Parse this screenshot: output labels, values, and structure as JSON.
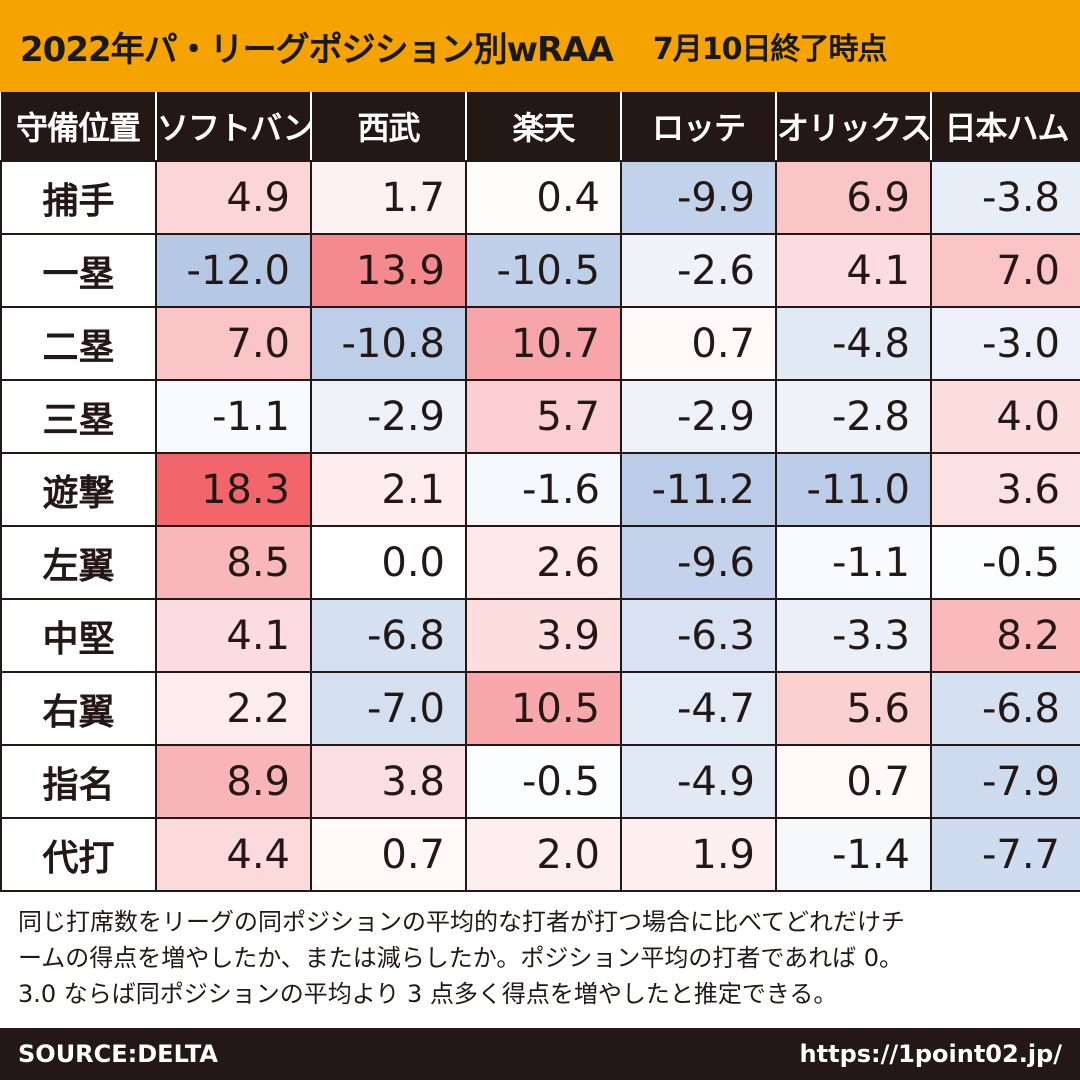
{
  "title": "2022年パ・リーグポジション別wRAA",
  "subtitle": "7月10日終了時点",
  "chart_data": {
    "type": "heatmap",
    "corner_label": "守備位置",
    "columns": [
      "ソフトバンク",
      "西武",
      "楽天",
      "ロッテ",
      "オリックス",
      "日本ハム"
    ],
    "rows": [
      {
        "label": "捕手",
        "values": [
          "4.9",
          "1.7",
          "0.4",
          "-9.9",
          "6.9",
          "-3.8"
        ]
      },
      {
        "label": "一塁",
        "values": [
          "-12.0",
          "13.9",
          "-10.5",
          "-2.6",
          "4.1",
          "7.0"
        ]
      },
      {
        "label": "二塁",
        "values": [
          "7.0",
          "-10.8",
          "10.7",
          "0.7",
          "-4.8",
          "-3.0"
        ]
      },
      {
        "label": "三塁",
        "values": [
          "-1.1",
          "-2.9",
          "5.7",
          "-2.9",
          "-2.8",
          "4.0"
        ]
      },
      {
        "label": "遊撃",
        "values": [
          "18.3",
          "2.1",
          "-1.6",
          "-11.2",
          "-11.0",
          "3.6"
        ]
      },
      {
        "label": "左翼",
        "values": [
          "8.5",
          "0.0",
          "2.6",
          "-9.6",
          "-1.1",
          "-0.5"
        ]
      },
      {
        "label": "中堅",
        "values": [
          "4.1",
          "-6.8",
          "3.9",
          "-6.3",
          "-3.3",
          "8.2"
        ]
      },
      {
        "label": "右翼",
        "values": [
          "2.2",
          "-7.0",
          "10.5",
          "-4.7",
          "5.6",
          "-6.8"
        ]
      },
      {
        "label": "指名",
        "values": [
          "8.9",
          "3.8",
          "-0.5",
          "-4.9",
          "0.7",
          "-7.9"
        ]
      },
      {
        "label": "代打",
        "values": [
          "4.4",
          "0.7",
          "2.0",
          "1.9",
          "-1.4",
          "-7.7"
        ]
      }
    ],
    "color_scale": {
      "negative": "#8eacd8",
      "neutral": "#ffffff",
      "positive": "#f2656a"
    }
  },
  "note": {
    "line1": "同じ打席数をリーグの同ポジションの平均的な打者が打つ場合に比べてどれだけチ",
    "line2": "ームの得点を増やしたか、または減らしたか。ポジション平均の打者であれば 0。",
    "line3": "3.0 ならば同ポジションの平均より 3 点多く得点を増やしたと推定できる。"
  },
  "footer": {
    "source": "SOURCE:DELTA",
    "url": "https://1point02.jp/"
  }
}
